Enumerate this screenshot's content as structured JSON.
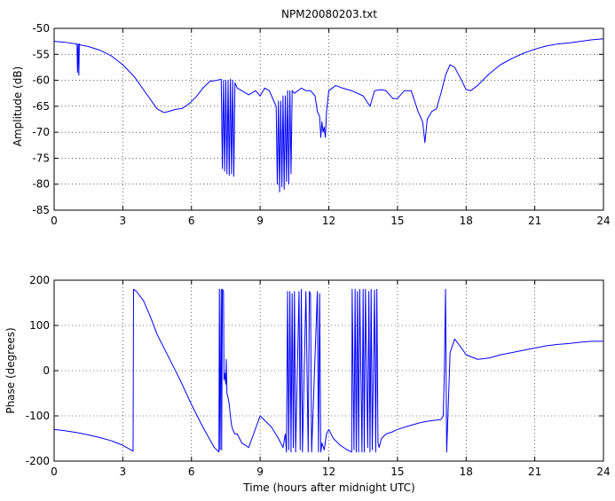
{
  "chart_data": [
    {
      "type": "line",
      "title": "NPM20080203.txt",
      "xlabel": "",
      "ylabel": "Amplitude (dB)",
      "xlim": [
        0,
        24
      ],
      "ylim": [
        -85,
        -50
      ],
      "xticks": [
        0,
        3,
        6,
        9,
        12,
        15,
        18,
        21,
        24
      ],
      "yticks": [
        -85,
        -80,
        -75,
        -70,
        -65,
        -60,
        -55,
        -50
      ],
      "grid": "dotted",
      "series": [
        {
          "color": "#0000ff",
          "x": [
            0,
            0.5,
            1.0,
            1.02,
            1.05,
            1.08,
            1.1,
            1.15,
            1.5,
            2.0,
            2.5,
            3.0,
            3.5,
            4.0,
            4.5,
            4.8,
            5.0,
            5.3,
            5.6,
            5.9,
            6.2,
            6.5,
            6.8,
            7.1,
            7.3,
            7.35,
            7.4,
            7.45,
            7.5,
            7.55,
            7.6,
            7.65,
            7.7,
            7.75,
            7.8,
            7.85,
            7.9,
            7.95,
            8.0,
            8.2,
            8.5,
            8.8,
            9.0,
            9.2,
            9.4,
            9.6,
            9.7,
            9.75,
            9.8,
            9.85,
            9.9,
            9.95,
            10.0,
            10.05,
            10.1,
            10.15,
            10.2,
            10.25,
            10.3,
            10.35,
            10.4,
            10.5,
            10.8,
            11.0,
            11.2,
            11.4,
            11.5,
            11.6,
            11.65,
            11.7,
            11.75,
            11.8,
            11.85,
            11.9,
            12.0,
            12.3,
            12.6,
            13.0,
            13.5,
            13.8,
            14.0,
            14.3,
            14.5,
            14.8,
            15.0,
            15.3,
            15.6,
            15.9,
            16.1,
            16.2,
            16.3,
            16.5,
            16.7,
            16.9,
            17.1,
            17.3,
            17.5,
            17.8,
            18.0,
            18.2,
            18.5,
            19.0,
            19.5,
            20.0,
            20.5,
            21.0,
            21.5,
            22.0,
            22.5,
            23.0,
            23.5,
            24.0
          ],
          "y": [
            -52.5,
            -52.7,
            -53.0,
            -58.5,
            -53.0,
            -59.0,
            -53.0,
            -53.2,
            -53.5,
            -54.2,
            -55.3,
            -57.0,
            -59.3,
            -62.4,
            -65.5,
            -66.2,
            -66.0,
            -65.6,
            -65.4,
            -64.5,
            -63.2,
            -61.5,
            -60.2,
            -60.0,
            -59.8,
            -77.0,
            -60.0,
            -77.5,
            -60.0,
            -78.0,
            -60.0,
            -78.3,
            -59.8,
            -78.0,
            -60.0,
            -78.5,
            -60.5,
            -61.0,
            -61.5,
            -62.0,
            -62.8,
            -62.0,
            -63.0,
            -61.5,
            -62.0,
            -64.0,
            -65.0,
            -80.0,
            -64.0,
            -81.5,
            -64.0,
            -80.5,
            -63.0,
            -81.0,
            -63.0,
            -79.5,
            -62.0,
            -80.0,
            -62.0,
            -78.0,
            -62.0,
            -62.5,
            -61.5,
            -62.0,
            -62.0,
            -63.0,
            -66.0,
            -67.0,
            -71.0,
            -68.0,
            -70.0,
            -69.0,
            -71.0,
            -66.0,
            -62.0,
            -61.0,
            -61.5,
            -62.0,
            -63.0,
            -65.0,
            -62.0,
            -61.8,
            -62.0,
            -63.5,
            -63.5,
            -62.0,
            -62.0,
            -66.0,
            -68.0,
            -72.0,
            -67.5,
            -66.0,
            -65.5,
            -62.5,
            -59.0,
            -57.0,
            -57.5,
            -60.0,
            -61.8,
            -62.0,
            -61.0,
            -58.8,
            -57.0,
            -55.8,
            -54.8,
            -54.0,
            -53.4,
            -53.0,
            -52.8,
            -52.5,
            -52.2,
            -52.0
          ]
        }
      ]
    },
    {
      "type": "line",
      "title": "",
      "xlabel": "Time (hours after midnight UTC)",
      "ylabel": "Phase (degrees)",
      "xlim": [
        0,
        24
      ],
      "ylim": [
        -200,
        200
      ],
      "xticks": [
        0,
        3,
        6,
        9,
        12,
        15,
        18,
        21,
        24
      ],
      "yticks": [
        -200,
        -100,
        0,
        100,
        200
      ],
      "grid": "dotted",
      "series": [
        {
          "color": "#0000ff",
          "x": [
            0,
            0.5,
            1.0,
            1.5,
            2.0,
            2.5,
            3.0,
            3.45,
            3.47,
            3.6,
            3.9,
            4.2,
            4.5,
            5.0,
            5.5,
            6.0,
            6.5,
            7.0,
            7.2,
            7.22,
            7.25,
            7.3,
            7.32,
            7.35,
            7.4,
            7.42,
            7.45,
            7.5,
            7.52,
            7.55,
            7.6,
            7.65,
            7.7,
            7.75,
            7.8,
            7.85,
            7.9,
            8.0,
            8.2,
            8.5,
            9.0,
            9.5,
            9.8,
            10.0,
            10.1,
            10.15,
            10.2,
            10.25,
            10.3,
            10.35,
            10.4,
            10.45,
            10.5,
            10.55,
            10.7,
            10.75,
            10.8,
            10.85,
            11.0,
            11.1,
            11.15,
            11.2,
            11.25,
            11.5,
            11.55,
            11.6,
            11.65,
            11.7,
            11.8,
            11.9,
            12.0,
            12.2,
            12.5,
            12.8,
            13.0,
            13.02,
            13.1,
            13.15,
            13.2,
            13.25,
            13.3,
            13.35,
            13.45,
            13.5,
            13.55,
            13.6,
            13.7,
            13.75,
            13.8,
            13.85,
            13.9,
            14.0,
            14.05,
            14.1,
            14.15,
            14.2,
            14.3,
            14.5,
            14.8,
            15.0,
            15.5,
            16.0,
            16.3,
            16.6,
            16.9,
            17.0,
            17.05,
            17.1,
            17.15,
            17.3,
            17.5,
            17.8,
            18.0,
            18.5,
            19.0,
            19.5,
            20.0,
            20.5,
            21.0,
            21.5,
            22.0,
            22.5,
            23.0,
            23.5,
            24.0
          ],
          "y": [
            -130,
            -133,
            -137,
            -142,
            -148,
            -155,
            -165,
            -178,
            180,
            175,
            155,
            120,
            80,
            30,
            -20,
            -75,
            -125,
            -170,
            -180,
            180,
            -175,
            180,
            -175,
            180,
            175,
            -20,
            -5,
            -30,
            25,
            -50,
            -60,
            -75,
            -100,
            -120,
            -130,
            -135,
            -140,
            -140,
            -160,
            -170,
            -100,
            -125,
            -150,
            -170,
            -140,
            -180,
            175,
            -175,
            175,
            -180,
            170,
            -170,
            175,
            -180,
            175,
            -175,
            180,
            -180,
            175,
            -180,
            175,
            170,
            -180,
            175,
            -180,
            170,
            -180,
            -160,
            -175,
            -140,
            -130,
            -150,
            -165,
            -175,
            -180,
            180,
            -175,
            180,
            -180,
            175,
            -180,
            180,
            -180,
            180,
            -180,
            180,
            -170,
            175,
            -180,
            180,
            -175,
            178,
            -180,
            180,
            -160,
            -170,
            -150,
            -140,
            -135,
            -130,
            -122,
            -115,
            -112,
            -110,
            -108,
            -100,
            0,
            180,
            -180,
            40,
            70,
            50,
            35,
            25,
            28,
            35,
            40,
            45,
            50,
            55,
            58,
            60,
            63,
            65,
            65
          ]
        }
      ]
    }
  ]
}
